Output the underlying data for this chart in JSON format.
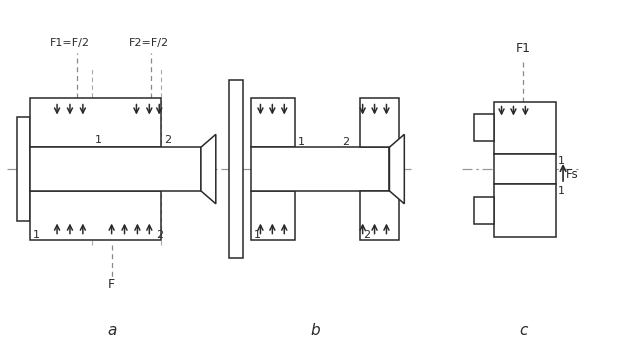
{
  "fig_width": 6.35,
  "fig_height": 3.54,
  "dpi": 100,
  "bg_color": "#ffffff",
  "line_color": "#2a2a2a",
  "dash_color": "#888888",
  "arrow_color": "#1a1a1a",
  "label_a": "a",
  "label_b": "b",
  "label_c": "c",
  "text_F1_eq": "F1=F/2",
  "text_F2_eq": "F2=F/2",
  "text_F": "F",
  "text_F1": "F1",
  "text_Fs": "Fs",
  "text_1": "1",
  "text_2": "2"
}
